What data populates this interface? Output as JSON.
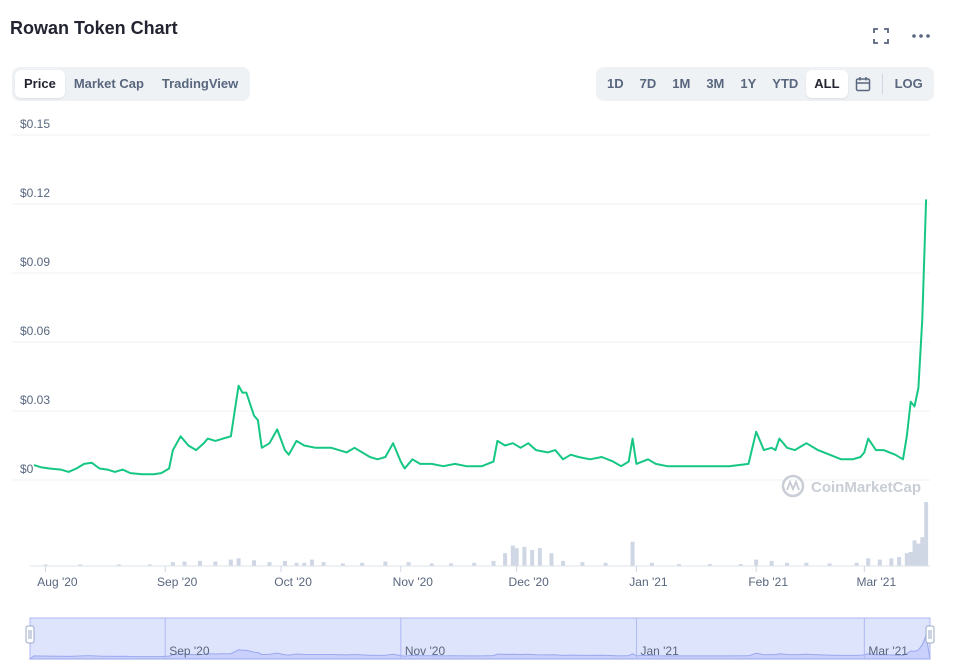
{
  "header": {
    "title": "Rowan Token Chart"
  },
  "icons": {
    "fullscreen": "fullscreen-icon",
    "more": "more-options-icon",
    "calendar": "calendar-icon"
  },
  "tabs": [
    {
      "label": "Price",
      "active": true
    },
    {
      "label": "Market Cap",
      "active": false
    },
    {
      "label": "TradingView",
      "active": false
    }
  ],
  "ranges": [
    {
      "label": "1D",
      "active": false
    },
    {
      "label": "7D",
      "active": false
    },
    {
      "label": "1M",
      "active": false
    },
    {
      "label": "3M",
      "active": false
    },
    {
      "label": "1Y",
      "active": false
    },
    {
      "label": "YTD",
      "active": false
    },
    {
      "label": "ALL",
      "active": true
    }
  ],
  "log_label": "LOG",
  "watermark": "CoinMarketCap",
  "colors": {
    "line": "#16c784",
    "volume": "#cfd6e4",
    "navigator_fill": "#c8d0fb",
    "navigator_bg": "#dfe4fd"
  },
  "navigator": {
    "ticks": [
      "Sep '20",
      "Nov '20",
      "Jan '21",
      "Mar '21"
    ]
  },
  "chart_data": {
    "type": "line",
    "title": "Rowan Token Chart",
    "ylabel": "",
    "xlabel": "",
    "ylim": [
      0,
      0.15
    ],
    "yticks": [
      "$0",
      "$0.03",
      "$0.06",
      "$0.09",
      "$0.12",
      "$0.15"
    ],
    "xticks": [
      "Aug '20",
      "Sep '20",
      "Oct '20",
      "Nov '20",
      "Dec '20",
      "Jan '21",
      "Feb '21",
      "Mar '21"
    ],
    "grid": true,
    "series": [
      {
        "values": [
          [
            "2020-07-29",
            0.0065
          ],
          [
            "2020-07-31",
            0.0055
          ],
          [
            "2020-08-02",
            0.005
          ],
          [
            "2020-08-05",
            0.0045
          ],
          [
            "2020-08-07",
            0.0035
          ],
          [
            "2020-08-09",
            0.005
          ],
          [
            "2020-08-11",
            0.007
          ],
          [
            "2020-08-13",
            0.0075
          ],
          [
            "2020-08-15",
            0.005
          ],
          [
            "2020-08-17",
            0.0045
          ],
          [
            "2020-08-19",
            0.0035
          ],
          [
            "2020-08-21",
            0.0045
          ],
          [
            "2020-08-23",
            0.003
          ],
          [
            "2020-08-26",
            0.0025
          ],
          [
            "2020-08-29",
            0.0025
          ],
          [
            "2020-08-31",
            0.003
          ],
          [
            "2020-09-02",
            0.005
          ],
          [
            "2020-09-03",
            0.013
          ],
          [
            "2020-09-05",
            0.019
          ],
          [
            "2020-09-07",
            0.015
          ],
          [
            "2020-09-09",
            0.013
          ],
          [
            "2020-09-11",
            0.016
          ],
          [
            "2020-09-12",
            0.018
          ],
          [
            "2020-09-14",
            0.017
          ],
          [
            "2020-09-16",
            0.018
          ],
          [
            "2020-09-18",
            0.019
          ],
          [
            "2020-09-19",
            0.03
          ],
          [
            "2020-09-20",
            0.041
          ],
          [
            "2020-09-21",
            0.038
          ],
          [
            "2020-09-22",
            0.038
          ],
          [
            "2020-09-24",
            0.028
          ],
          [
            "2020-09-25",
            0.026
          ],
          [
            "2020-09-26",
            0.014
          ],
          [
            "2020-09-28",
            0.016
          ],
          [
            "2020-09-30",
            0.022
          ],
          [
            "2020-10-02",
            0.013
          ],
          [
            "2020-10-03",
            0.011
          ],
          [
            "2020-10-05",
            0.017
          ],
          [
            "2020-10-07",
            0.015
          ],
          [
            "2020-10-10",
            0.014
          ],
          [
            "2020-10-14",
            0.014
          ],
          [
            "2020-10-18",
            0.012
          ],
          [
            "2020-10-20",
            0.014
          ],
          [
            "2020-10-22",
            0.012
          ],
          [
            "2020-10-24",
            0.01
          ],
          [
            "2020-10-26",
            0.009
          ],
          [
            "2020-10-28",
            0.01
          ],
          [
            "2020-10-30",
            0.016
          ],
          [
            "2020-11-01",
            0.008
          ],
          [
            "2020-11-02",
            0.005
          ],
          [
            "2020-11-04",
            0.009
          ],
          [
            "2020-11-06",
            0.007
          ],
          [
            "2020-11-09",
            0.007
          ],
          [
            "2020-11-12",
            0.006
          ],
          [
            "2020-11-15",
            0.007
          ],
          [
            "2020-11-18",
            0.006
          ],
          [
            "2020-11-22",
            0.006
          ],
          [
            "2020-11-25",
            0.008
          ],
          [
            "2020-11-26",
            0.017
          ],
          [
            "2020-11-28",
            0.015
          ],
          [
            "2020-11-30",
            0.016
          ],
          [
            "2020-12-02",
            0.014
          ],
          [
            "2020-12-04",
            0.016
          ],
          [
            "2020-12-06",
            0.013
          ],
          [
            "2020-12-09",
            0.012
          ],
          [
            "2020-12-11",
            0.013
          ],
          [
            "2020-12-13",
            0.009
          ],
          [
            "2020-12-15",
            0.011
          ],
          [
            "2020-12-17",
            0.01
          ],
          [
            "2020-12-20",
            0.009
          ],
          [
            "2020-12-23",
            0.01
          ],
          [
            "2020-12-26",
            0.008
          ],
          [
            "2020-12-28",
            0.006
          ],
          [
            "2020-12-30",
            0.008
          ],
          [
            "2020-12-31",
            0.018
          ],
          [
            "2021-01-01",
            0.007
          ],
          [
            "2021-01-04",
            0.009
          ],
          [
            "2021-01-06",
            0.007
          ],
          [
            "2021-01-09",
            0.006
          ],
          [
            "2021-01-12",
            0.006
          ],
          [
            "2021-01-15",
            0.006
          ],
          [
            "2021-01-20",
            0.006
          ],
          [
            "2021-01-25",
            0.006
          ],
          [
            "2021-01-30",
            0.007
          ],
          [
            "2021-02-01",
            0.021
          ],
          [
            "2021-02-03",
            0.013
          ],
          [
            "2021-02-05",
            0.014
          ],
          [
            "2021-02-06",
            0.013
          ],
          [
            "2021-02-07",
            0.018
          ],
          [
            "2021-02-09",
            0.014
          ],
          [
            "2021-02-11",
            0.013
          ],
          [
            "2021-02-14",
            0.016
          ],
          [
            "2021-02-17",
            0.013
          ],
          [
            "2021-02-20",
            0.011
          ],
          [
            "2021-02-23",
            0.009
          ],
          [
            "2021-02-26",
            0.009
          ],
          [
            "2021-02-28",
            0.01
          ],
          [
            "2021-03-01",
            0.012
          ],
          [
            "2021-03-02",
            0.018
          ],
          [
            "2021-03-04",
            0.013
          ],
          [
            "2021-03-06",
            0.013
          ],
          [
            "2021-03-09",
            0.011
          ],
          [
            "2021-03-11",
            0.009
          ],
          [
            "2021-03-12",
            0.019
          ],
          [
            "2021-03-13",
            0.034
          ],
          [
            "2021-03-14",
            0.032
          ],
          [
            "2021-03-15",
            0.04
          ],
          [
            "2021-03-16",
            0.07
          ],
          [
            "2021-03-17",
            0.122
          ]
        ]
      }
    ],
    "volume": [
      [
        "2020-08-01",
        0.01
      ],
      [
        "2020-08-10",
        0.01
      ],
      [
        "2020-08-20",
        0.01
      ],
      [
        "2020-08-28",
        0.015
      ],
      [
        "2020-09-03",
        0.06
      ],
      [
        "2020-09-06",
        0.07
      ],
      [
        "2020-09-10",
        0.08
      ],
      [
        "2020-09-14",
        0.07
      ],
      [
        "2020-09-18",
        0.1
      ],
      [
        "2020-09-20",
        0.12
      ],
      [
        "2020-09-24",
        0.09
      ],
      [
        "2020-09-28",
        0.06
      ],
      [
        "2020-10-02",
        0.08
      ],
      [
        "2020-10-05",
        0.05
      ],
      [
        "2020-10-07",
        0.05
      ],
      [
        "2020-10-09",
        0.1
      ],
      [
        "2020-10-12",
        0.06
      ],
      [
        "2020-10-17",
        0.04
      ],
      [
        "2020-10-22",
        0.05
      ],
      [
        "2020-10-28",
        0.07
      ],
      [
        "2020-11-03",
        0.06
      ],
      [
        "2020-11-09",
        0.04
      ],
      [
        "2020-11-14",
        0.04
      ],
      [
        "2020-11-20",
        0.05
      ],
      [
        "2020-11-25",
        0.08
      ],
      [
        "2020-11-28",
        0.2
      ],
      [
        "2020-11-30",
        0.32
      ],
      [
        "2020-12-01",
        0.28
      ],
      [
        "2020-12-03",
        0.3
      ],
      [
        "2020-12-05",
        0.25
      ],
      [
        "2020-12-07",
        0.28
      ],
      [
        "2020-12-10",
        0.2
      ],
      [
        "2020-12-13",
        0.08
      ],
      [
        "2020-12-18",
        0.06
      ],
      [
        "2020-12-24",
        0.05
      ],
      [
        "2020-12-31",
        0.38
      ],
      [
        "2021-01-05",
        0.05
      ],
      [
        "2021-01-12",
        0.03
      ],
      [
        "2021-01-20",
        0.03
      ],
      [
        "2021-01-28",
        0.03
      ],
      [
        "2021-02-01",
        0.1
      ],
      [
        "2021-02-05",
        0.08
      ],
      [
        "2021-02-09",
        0.05
      ],
      [
        "2021-02-14",
        0.05
      ],
      [
        "2021-02-20",
        0.04
      ],
      [
        "2021-02-27",
        0.05
      ],
      [
        "2021-03-02",
        0.12
      ],
      [
        "2021-03-05",
        0.1
      ],
      [
        "2021-03-08",
        0.12
      ],
      [
        "2021-03-10",
        0.14
      ],
      [
        "2021-03-12",
        0.2
      ],
      [
        "2021-03-13",
        0.22
      ],
      [
        "2021-03-14",
        0.4
      ],
      [
        "2021-03-15",
        0.35
      ],
      [
        "2021-03-16",
        0.45
      ],
      [
        "2021-03-17",
        1.0
      ]
    ]
  }
}
